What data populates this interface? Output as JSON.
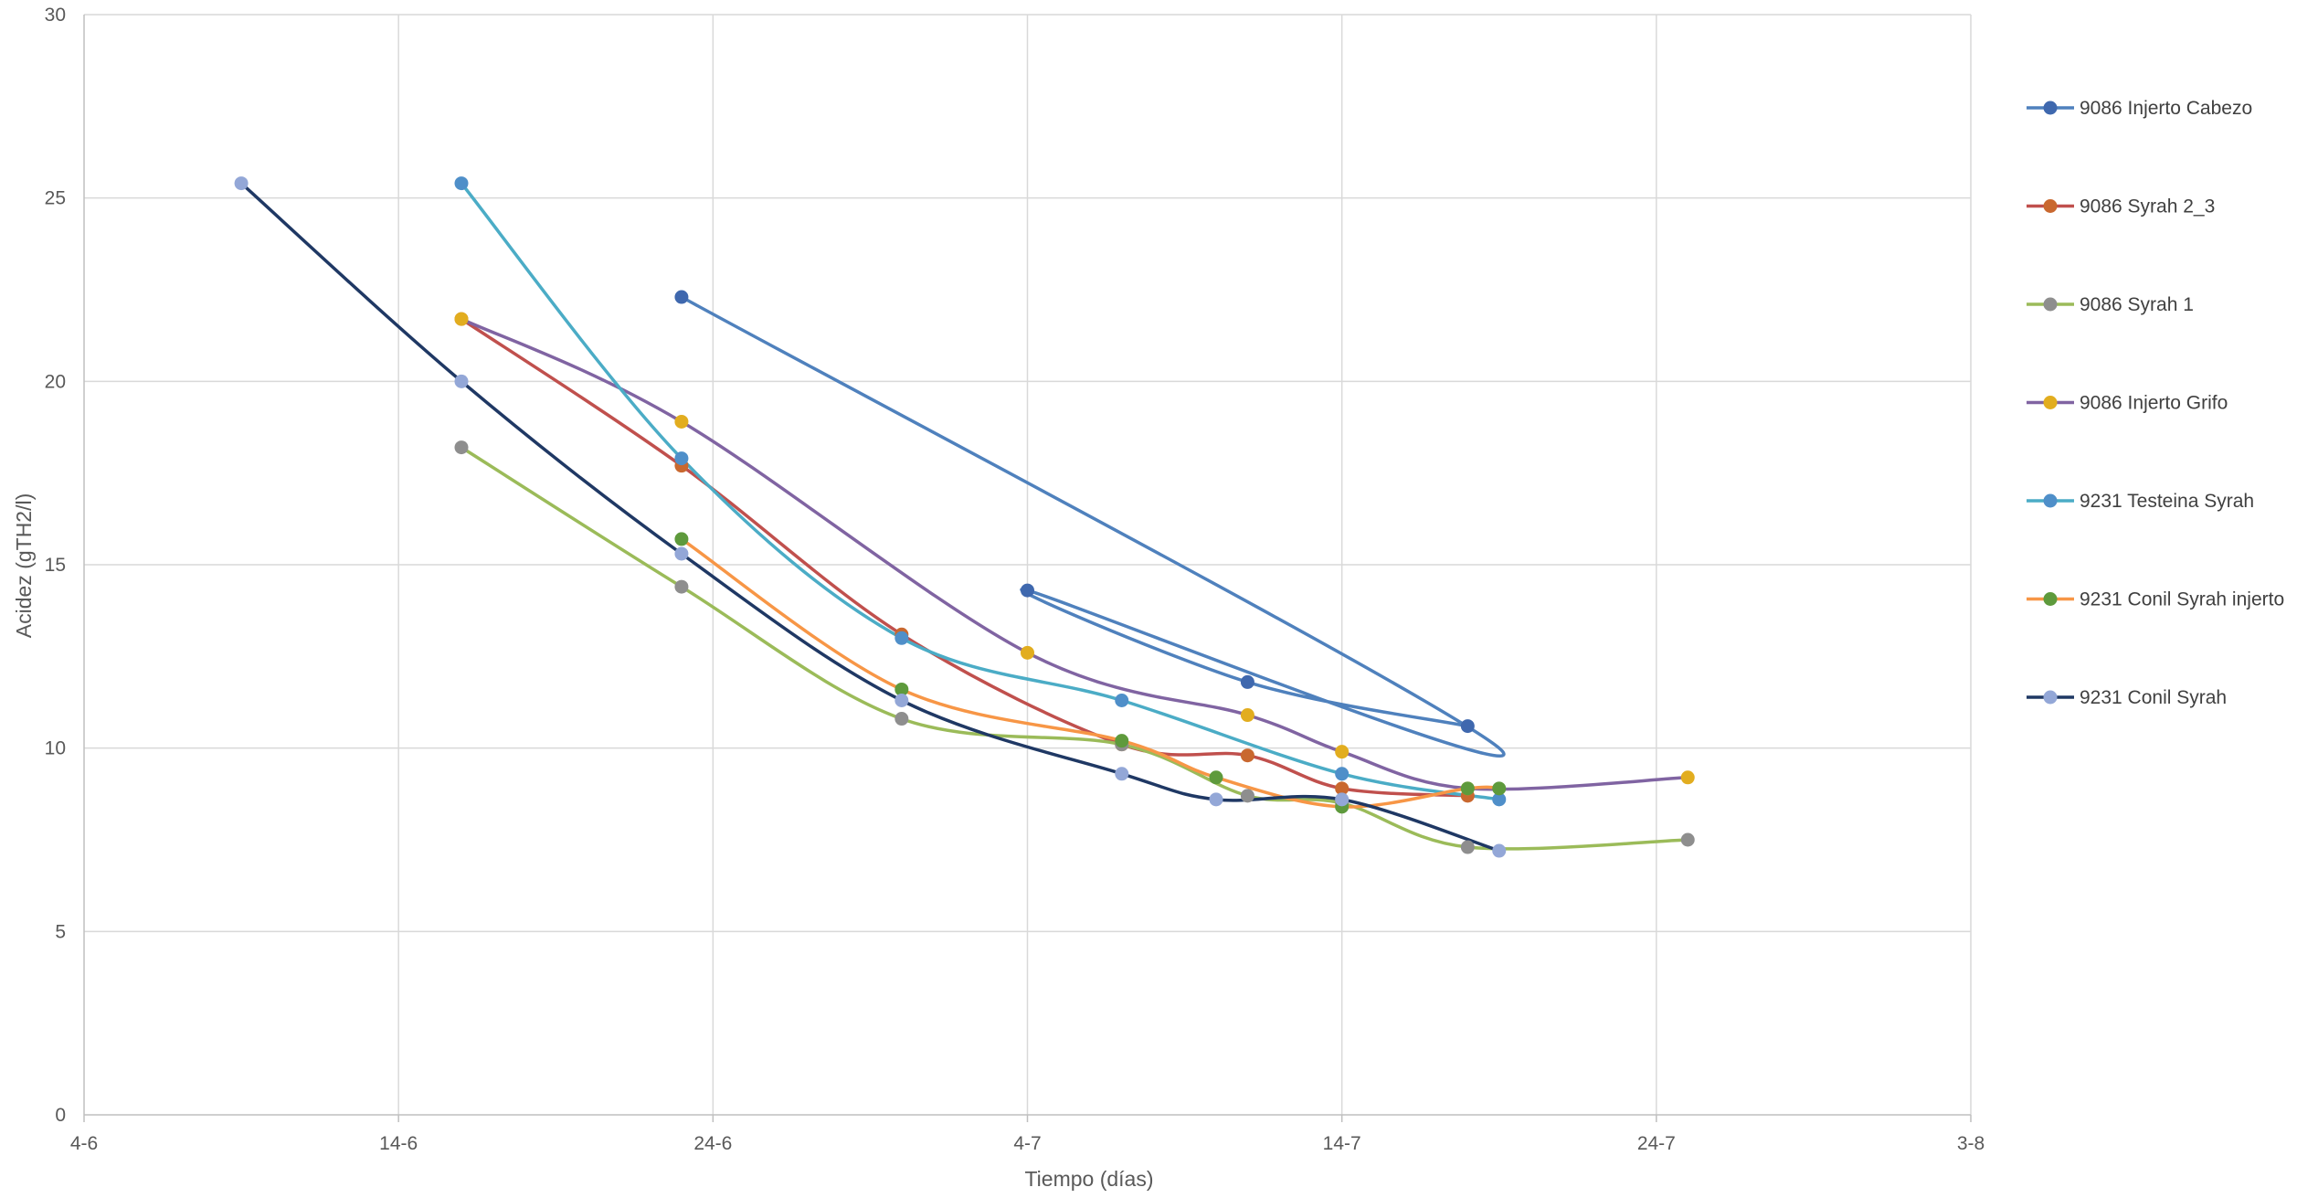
{
  "chart_data": {
    "type": "line",
    "title": "",
    "xlabel": "Tiempo (días)",
    "ylabel": "Acidez (gTH2/l)",
    "x_ticks": [
      "4-6",
      "14-6",
      "24-6",
      "4-7",
      "14-7",
      "24-7",
      "3-8"
    ],
    "xlim": [
      "2018-06-04",
      "2018-08-03"
    ],
    "y_ticks": [
      "0",
      "5",
      "10",
      "15",
      "20",
      "25",
      "30"
    ],
    "ylim": [
      0,
      30
    ],
    "grid": "major, both axes",
    "legend_position": "right",
    "smooth": true,
    "series": [
      {
        "name": "9086 Injerto Cabezo",
        "color": "#3F68AE",
        "line_color": "#4F81BD",
        "points": [
          {
            "x": "2018-06-23",
            "y": 22.3
          },
          {
            "x": "2018-07-19",
            "y": 10.0
          },
          {
            "x": "2018-07-04",
            "y": 14.3
          },
          {
            "x": "2018-07-11",
            "y": 11.8
          },
          {
            "x": "2018-07-18",
            "y": 10.6
          }
        ]
      },
      {
        "name": "9086 Syrah 2_3",
        "color": "#C9682F",
        "line_color": "#C0504D",
        "points": [
          {
            "x": "2018-06-16",
            "y": 21.7
          },
          {
            "x": "2018-06-23",
            "y": 17.7
          },
          {
            "x": "2018-06-30",
            "y": 13.1
          },
          {
            "x": "2018-07-07",
            "y": 10.1
          },
          {
            "x": "2018-07-11",
            "y": 9.8
          },
          {
            "x": "2018-07-14",
            "y": 8.9
          },
          {
            "x": "2018-07-18",
            "y": 8.7
          }
        ]
      },
      {
        "name": "9086 Syrah 1",
        "color": "#8E8E8E",
        "line_color": "#9BBB59",
        "points": [
          {
            "x": "2018-06-16",
            "y": 18.2
          },
          {
            "x": "2018-06-23",
            "y": 14.4
          },
          {
            "x": "2018-06-30",
            "y": 10.8
          },
          {
            "x": "2018-07-07",
            "y": 10.1
          },
          {
            "x": "2018-07-11",
            "y": 8.7
          },
          {
            "x": "2018-07-14",
            "y": 8.5
          },
          {
            "x": "2018-07-18",
            "y": 7.3
          },
          {
            "x": "2018-07-25",
            "y": 7.5
          }
        ]
      },
      {
        "name": "9086 Injerto Grifo",
        "color": "#E2AD1F",
        "line_color": "#8064A2",
        "points": [
          {
            "x": "2018-06-16",
            "y": 21.7
          },
          {
            "x": "2018-06-23",
            "y": 18.9
          },
          {
            "x": "2018-07-04",
            "y": 12.6
          },
          {
            "x": "2018-07-11",
            "y": 10.9
          },
          {
            "x": "2018-07-14",
            "y": 9.9
          },
          {
            "x": "2018-07-18",
            "y": 8.9
          },
          {
            "x": "2018-07-25",
            "y": 9.2
          }
        ]
      },
      {
        "name": "9231 Testeina Syrah",
        "color": "#4F8FC9",
        "line_color": "#4BACC6",
        "points": [
          {
            "x": "2018-06-16",
            "y": 25.4
          },
          {
            "x": "2018-06-23",
            "y": 17.9
          },
          {
            "x": "2018-06-30",
            "y": 13.0
          },
          {
            "x": "2018-07-07",
            "y": 11.3
          },
          {
            "x": "2018-07-14",
            "y": 9.3
          },
          {
            "x": "2018-07-19",
            "y": 8.6
          }
        ]
      },
      {
        "name": "9231 Conil Syrah injerto",
        "color": "#5E9A3C",
        "line_color": "#F79646",
        "points": [
          {
            "x": "2018-06-23",
            "y": 15.7
          },
          {
            "x": "2018-06-30",
            "y": 11.6
          },
          {
            "x": "2018-07-07",
            "y": 10.2
          },
          {
            "x": "2018-07-10",
            "y": 9.2
          },
          {
            "x": "2018-07-14",
            "y": 8.4
          },
          {
            "x": "2018-07-18",
            "y": 8.9
          },
          {
            "x": "2018-07-19",
            "y": 8.9
          }
        ]
      },
      {
        "name": "9231 Conil Syrah",
        "color": "#93A7D7",
        "line_color": "#1F3864",
        "points": [
          {
            "x": "2018-06-09",
            "y": 25.4
          },
          {
            "x": "2018-06-16",
            "y": 20.0
          },
          {
            "x": "2018-06-23",
            "y": 15.3
          },
          {
            "x": "2018-06-30",
            "y": 11.3
          },
          {
            "x": "2018-07-07",
            "y": 9.3
          },
          {
            "x": "2018-07-10",
            "y": 8.6
          },
          {
            "x": "2018-07-14",
            "y": 8.6
          },
          {
            "x": "2018-07-19",
            "y": 7.2
          }
        ]
      }
    ]
  }
}
